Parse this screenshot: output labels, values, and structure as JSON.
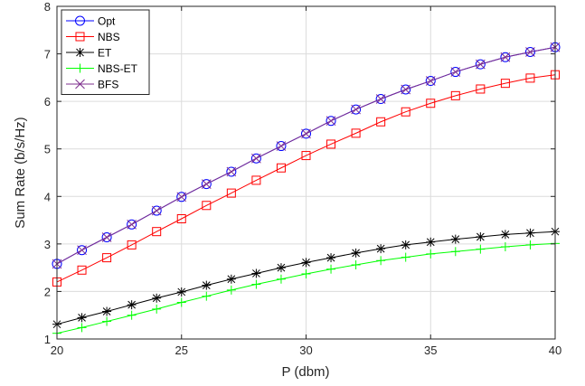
{
  "chart_data": {
    "type": "line",
    "xlabel": "P (dbm)",
    "ylabel": "Sum Rate (b/s/Hz)",
    "xlim": [
      20,
      40
    ],
    "ylim": [
      1,
      8
    ],
    "xticks": [
      20,
      25,
      30,
      35,
      40
    ],
    "yticks": [
      1,
      2,
      3,
      4,
      5,
      6,
      7,
      8
    ],
    "grid": true,
    "legend_position": "top-left",
    "x": [
      20,
      21,
      22,
      23,
      24,
      25,
      26,
      27,
      28,
      29,
      30,
      31,
      32,
      33,
      34,
      35,
      36,
      37,
      38,
      39,
      40
    ],
    "series": [
      {
        "name": "Opt",
        "color": "#0000ff",
        "marker": "circle",
        "values": [
          2.58,
          2.87,
          3.14,
          3.41,
          3.7,
          3.99,
          4.26,
          4.52,
          4.8,
          5.06,
          5.32,
          5.59,
          5.83,
          6.05,
          6.25,
          6.43,
          6.62,
          6.78,
          6.93,
          7.04,
          7.14
        ]
      },
      {
        "name": "NBS",
        "color": "#ff0000",
        "marker": "square",
        "values": [
          2.2,
          2.45,
          2.71,
          2.98,
          3.26,
          3.53,
          3.81,
          4.07,
          4.34,
          4.6,
          4.86,
          5.1,
          5.33,
          5.57,
          5.78,
          5.96,
          6.12,
          6.26,
          6.38,
          6.49,
          6.56
        ]
      },
      {
        "name": "ET",
        "color": "#000000",
        "marker": "asterisk",
        "values": [
          1.31,
          1.45,
          1.58,
          1.72,
          1.86,
          1.99,
          2.13,
          2.26,
          2.38,
          2.5,
          2.61,
          2.71,
          2.81,
          2.9,
          2.98,
          3.04,
          3.1,
          3.15,
          3.2,
          3.23,
          3.26
        ]
      },
      {
        "name": "NBS-ET",
        "color": "#00ff00",
        "marker": "plus",
        "values": [
          1.12,
          1.24,
          1.37,
          1.5,
          1.63,
          1.77,
          1.9,
          2.03,
          2.15,
          2.26,
          2.37,
          2.47,
          2.56,
          2.65,
          2.72,
          2.79,
          2.84,
          2.89,
          2.94,
          2.98,
          3.01
        ]
      },
      {
        "name": "BFS",
        "color": "#7e2f8e",
        "marker": "x",
        "values": [
          2.58,
          2.87,
          3.14,
          3.41,
          3.7,
          3.99,
          4.26,
          4.52,
          4.8,
          5.06,
          5.32,
          5.59,
          5.83,
          6.05,
          6.25,
          6.43,
          6.62,
          6.78,
          6.93,
          7.04,
          7.14
        ]
      }
    ]
  }
}
